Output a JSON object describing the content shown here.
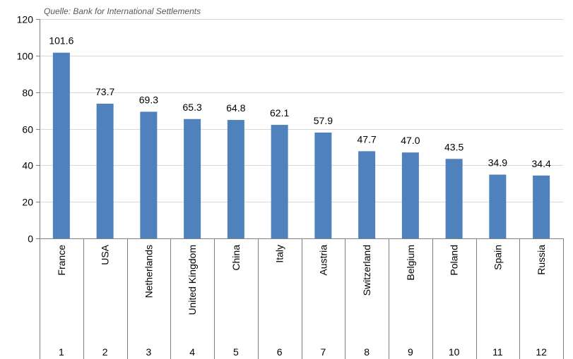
{
  "chart_data": {
    "type": "bar",
    "source_note": "Quelle: Bank for International Settlements",
    "categories": [
      "France",
      "USA",
      "Netherlands",
      "United Kingdom",
      "China",
      "Italy",
      "Austria",
      "Switzerland",
      "Belgium",
      "Poland",
      "Spain",
      "Russia"
    ],
    "ranks": [
      "1",
      "2",
      "3",
      "4",
      "5",
      "6",
      "7",
      "8",
      "9",
      "10",
      "11",
      "12"
    ],
    "values": [
      101.6,
      73.7,
      69.3,
      65.3,
      64.8,
      62.1,
      57.9,
      47.7,
      47.0,
      43.5,
      34.9,
      34.4
    ],
    "value_labels": [
      "101.6",
      "73.7",
      "69.3",
      "65.3",
      "64.8",
      "62.1",
      "57.9",
      "47.7",
      "47.0",
      "43.5",
      "34.9",
      "34.4"
    ],
    "ylim": [
      0,
      120
    ],
    "yticks": [
      0,
      20,
      40,
      60,
      80,
      100,
      120
    ],
    "grid": true,
    "bar_color": "#4F81BD",
    "grid_color": "#D9D9D9"
  }
}
